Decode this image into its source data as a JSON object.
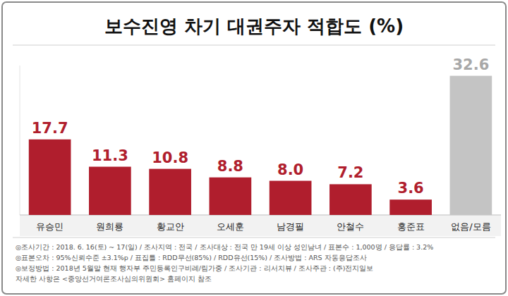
{
  "chart_data": {
    "type": "bar",
    "title": "보수진영 차기 대권주자 적합도 (%)",
    "categories": [
      "유승민",
      "원희룡",
      "황교안",
      "오세훈",
      "남경필",
      "안철수",
      "홍준표",
      "없음/모름"
    ],
    "values": [
      17.7,
      11.3,
      10.8,
      8.8,
      8.0,
      7.2,
      3.6,
      32.6
    ],
    "value_labels": [
      "17.7",
      "11.3",
      "10.8",
      "8.8",
      "8.0",
      "7.2",
      "3.6",
      "32.6"
    ],
    "colors": [
      "#b01e2d",
      "#b01e2d",
      "#b01e2d",
      "#b01e2d",
      "#b01e2d",
      "#b01e2d",
      "#b01e2d",
      "#c4c4c4"
    ],
    "ylim": [
      0,
      35
    ],
    "tick_labels": false,
    "grid": false,
    "data_labels": true,
    "annotations": [
      "◎조사기간 : 2018. 6. 16(토) ~ 17(일) / 조사지역 : 전국 / 조사대상 : 전국 만 19세 이상 성인남녀 / 표본수 : 1,000명 / 응답률 : 3.2%",
      "◎표본오차 : 95%신뢰수준 ±3.1%p / 표집틀 : RDD무선(85%) / RDD유선(15%) / 조사방법 : ARS 자동응답조사",
      "◎보정방법 : 2018년 5월말 현재 행자부 주민등록인구비례/림가중 / 조사기관 : 리서치뷰 / 조사주관 : (주)전지일보",
      "자세한 사항은 <중앙선거여론조사심의위원회> 홈페이지 참조"
    ]
  }
}
